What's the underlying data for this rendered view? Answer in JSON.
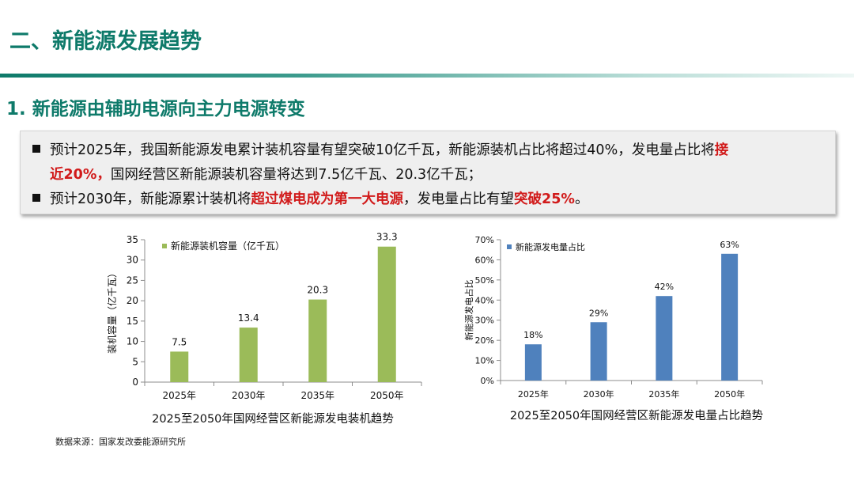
{
  "header": {
    "title": "二、新能源发展趋势",
    "subtitle": "1. 新能源由辅助电源向主力电源转变"
  },
  "bullets": {
    "line1_text": "预计2025年，我国新能源发电累计装机容量有望突破10亿千瓦，新能源装机占比将超过40%，发电量占比将",
    "line1_hl": "接",
    "line2_hl": "近20%，",
    "line2_text": "国网经营区新能源装机容量将达到7.5亿千瓦、20.3亿千瓦；",
    "line3_a": "预计2030年，新能源累计装机将",
    "line3_hl1": "超过煤电成为第一大电源",
    "line3_b": "，发电量占比有望",
    "line3_hl2": "突破25%",
    "line3_c": "。"
  },
  "colors": {
    "green_bar": "#9bbb59",
    "blue_bar": "#4f81bd",
    "accent": "#0e7a6a",
    "highlight": "#d11a1a"
  },
  "chart_data": [
    {
      "type": "bar",
      "title": "2025至2050年国网经营区新能源发电装机趋势",
      "ylabel": "装机容量（亿千瓦）",
      "xlabel": "",
      "categories": [
        "2025年",
        "2030年",
        "2035年",
        "2050年"
      ],
      "series": [
        {
          "name": "新能源装机容量（亿千瓦）",
          "values": [
            7.5,
            13.4,
            20.3,
            33.3
          ]
        }
      ],
      "data_labels": [
        "7.5",
        "13.4",
        "20.3",
        "33.3"
      ],
      "ylim": [
        0,
        35
      ],
      "yticks": [
        0,
        5,
        10,
        15,
        20,
        25,
        30,
        35
      ],
      "ytick_labels": [
        "0",
        "5",
        "10",
        "15",
        "20",
        "25",
        "30",
        "35"
      ],
      "legend": "top-left",
      "grid": false
    },
    {
      "type": "bar",
      "title": "2025至2050年国网经营区新能源发电量占比趋势",
      "ylabel": "新能源发电占比",
      "xlabel": "",
      "categories": [
        "2025年",
        "2030年",
        "2035年",
        "2050年"
      ],
      "series": [
        {
          "name": "新能源发电量占比",
          "values": [
            18,
            29,
            42,
            63
          ]
        }
      ],
      "data_labels": [
        "18%",
        "29%",
        "42%",
        "63%"
      ],
      "ylim": [
        0,
        70
      ],
      "yticks": [
        0,
        10,
        20,
        30,
        40,
        50,
        60,
        70
      ],
      "ytick_labels": [
        "0%",
        "10%",
        "20%",
        "30%",
        "40%",
        "50%",
        "60%",
        "70%"
      ],
      "legend": "top-left",
      "grid": false
    }
  ],
  "source": "数据来源：国家发改委能源研究所"
}
